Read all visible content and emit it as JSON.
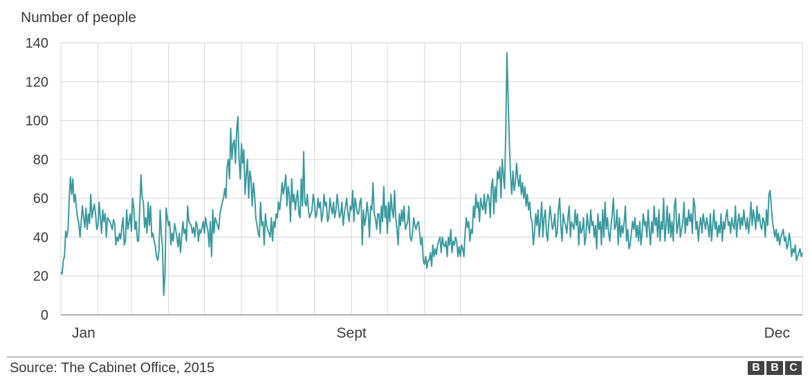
{
  "chart_data": {
    "type": "line",
    "title": "",
    "ylabel": "Number of people",
    "xlabel": "",
    "ylim": [
      0,
      140
    ],
    "yticks": [
      0,
      20,
      40,
      60,
      80,
      100,
      120,
      140
    ],
    "xticks": [
      {
        "label": "Jan",
        "x": 1
      },
      {
        "label": "Sept",
        "x": 244
      },
      {
        "label": "Dec",
        "x": 335
      }
    ],
    "grid": true,
    "line_color": "#3a9a9e",
    "series": [
      {
        "name": "",
        "x_unit": "day",
        "values": [
          22,
          21,
          28,
          30,
          43,
          40,
          44,
          60,
          71,
          62,
          70,
          58,
          62,
          55,
          50,
          47,
          40,
          48,
          56,
          50,
          45,
          55,
          44,
          52,
          47,
          62,
          50,
          54,
          57,
          52,
          44,
          46,
          58,
          50,
          42,
          54,
          48,
          52,
          40,
          50,
          49,
          48,
          46,
          44,
          49,
          47,
          36,
          40,
          38,
          42,
          39,
          45,
          50,
          36,
          38,
          54,
          44,
          48,
          52,
          43,
          60,
          55,
          44,
          48,
          38,
          38,
          56,
          72,
          60,
          58,
          45,
          50,
          42,
          58,
          46,
          56,
          40,
          42,
          38,
          35,
          30,
          28,
          33,
          54,
          42,
          34,
          10,
          20,
          55,
          50,
          46,
          48,
          36,
          42,
          38,
          47,
          44,
          40,
          35,
          42,
          32,
          40,
          48,
          42,
          44,
          38,
          56,
          48,
          47,
          46,
          42,
          45,
          40,
          48,
          46,
          38,
          44,
          42,
          45,
          48,
          42,
          50,
          46,
          43,
          35,
          48,
          30,
          54,
          42,
          50,
          48,
          46,
          44,
          52,
          55,
          58,
          60,
          65,
          60,
          76,
          80,
          70,
          96,
          80,
          88,
          90,
          78,
          95,
          102,
          80,
          70,
          88,
          78,
          85,
          62,
          72,
          80,
          60,
          74,
          70,
          56,
          68,
          62,
          50,
          46,
          42,
          40,
          58,
          46,
          48,
          36,
          52,
          46,
          44,
          42,
          40,
          50,
          38,
          48,
          45,
          52,
          50,
          58,
          54,
          60,
          68,
          62,
          66,
          72,
          56,
          66,
          62,
          48,
          70,
          58,
          62,
          54,
          60,
          64,
          52,
          50,
          70,
          56,
          84,
          58,
          56,
          62,
          54,
          50,
          52,
          54,
          62,
          58,
          50,
          52,
          60,
          55,
          58,
          48,
          52,
          62,
          56,
          58,
          48,
          50,
          60,
          55,
          52,
          58,
          50,
          54,
          62,
          56,
          50,
          52,
          58,
          46,
          52,
          56,
          60,
          52,
          48,
          56,
          54,
          64,
          48,
          60,
          56,
          52,
          52,
          58,
          60,
          36,
          54,
          46,
          50,
          58,
          52,
          40,
          56,
          54,
          68,
          52,
          50,
          44,
          52,
          52,
          42,
          56,
          48,
          66,
          50,
          56,
          42,
          58,
          48,
          62,
          54,
          50,
          64,
          50,
          44,
          36,
          52,
          46,
          54,
          48,
          56,
          44,
          46,
          48,
          56,
          40,
          38,
          42,
          50,
          46,
          44,
          47,
          48,
          42,
          36,
          40,
          28,
          26,
          30,
          24,
          28,
          28,
          32,
          25,
          36,
          30,
          34,
          31,
          36,
          38,
          40,
          32,
          40,
          36,
          35,
          38,
          30,
          40,
          36,
          44,
          32,
          38,
          36,
          40,
          38,
          30,
          35,
          30,
          36,
          34,
          30,
          42,
          50,
          45,
          48,
          38,
          44,
          42,
          56,
          50,
          62,
          55,
          58,
          48,
          60,
          56,
          54,
          62,
          52,
          58,
          62,
          60,
          50,
          66,
          70,
          52,
          66,
          58,
          74,
          70,
          76,
          60,
          80,
          72,
          65,
          95,
          135,
          110,
          88,
          72,
          62,
          74,
          64,
          68,
          78,
          70,
          66,
          72,
          62,
          68,
          60,
          66,
          56,
          62,
          54,
          58,
          50,
          48,
          36,
          42,
          52,
          46,
          54,
          40,
          48,
          58,
          40,
          50,
          54,
          42,
          38,
          48,
          56,
          50,
          44,
          46,
          52,
          40,
          42,
          54,
          60,
          46,
          38,
          52,
          48,
          46,
          42,
          50,
          56,
          40,
          48,
          46,
          44,
          54,
          46,
          52,
          36,
          48,
          42,
          44,
          50,
          36,
          40,
          52,
          46,
          42,
          54,
          46,
          48,
          40,
          46,
          34,
          52,
          44,
          48,
          36,
          54,
          40,
          58,
          44,
          50,
          42,
          38,
          46,
          52,
          60,
          44,
          46,
          54,
          36,
          50,
          40,
          46,
          42,
          48,
          56,
          38,
          44,
          34,
          36,
          42,
          48,
          44,
          50,
          40,
          46,
          38,
          48,
          36,
          42,
          52,
          46,
          48,
          40,
          54,
          44,
          36,
          48,
          42,
          56,
          46,
          50,
          40,
          54,
          38,
          48,
          44,
          60,
          38,
          46,
          56,
          42,
          52,
          40,
          48,
          38,
          56,
          60,
          42,
          46,
          52,
          40,
          44,
          48,
          58,
          42,
          50,
          46,
          54,
          48,
          52,
          42,
          60,
          56,
          44,
          48,
          38,
          46,
          50,
          42,
          52,
          48,
          44,
          50,
          46,
          40,
          52,
          38,
          46,
          54,
          44,
          48,
          40,
          46,
          42,
          52,
          38,
          48,
          44,
          50,
          54,
          46,
          48,
          42,
          50,
          46,
          44,
          56,
          40,
          48,
          52,
          44,
          50,
          46,
          54,
          48,
          44,
          50,
          42,
          48,
          58,
          46,
          54,
          50,
          44,
          56,
          48,
          52,
          46,
          44,
          50,
          48,
          40,
          54,
          46,
          62,
          64,
          56,
          48,
          44,
          40,
          44,
          38,
          42,
          36,
          40,
          42,
          44,
          38,
          40,
          34,
          36,
          42,
          38,
          30,
          34,
          32,
          36,
          28,
          30,
          32,
          34,
          30,
          32
        ]
      }
    ]
  },
  "footer": {
    "source": "Source: The Cabinet Office, 2015",
    "logo_letters": [
      "B",
      "B",
      "C"
    ]
  }
}
